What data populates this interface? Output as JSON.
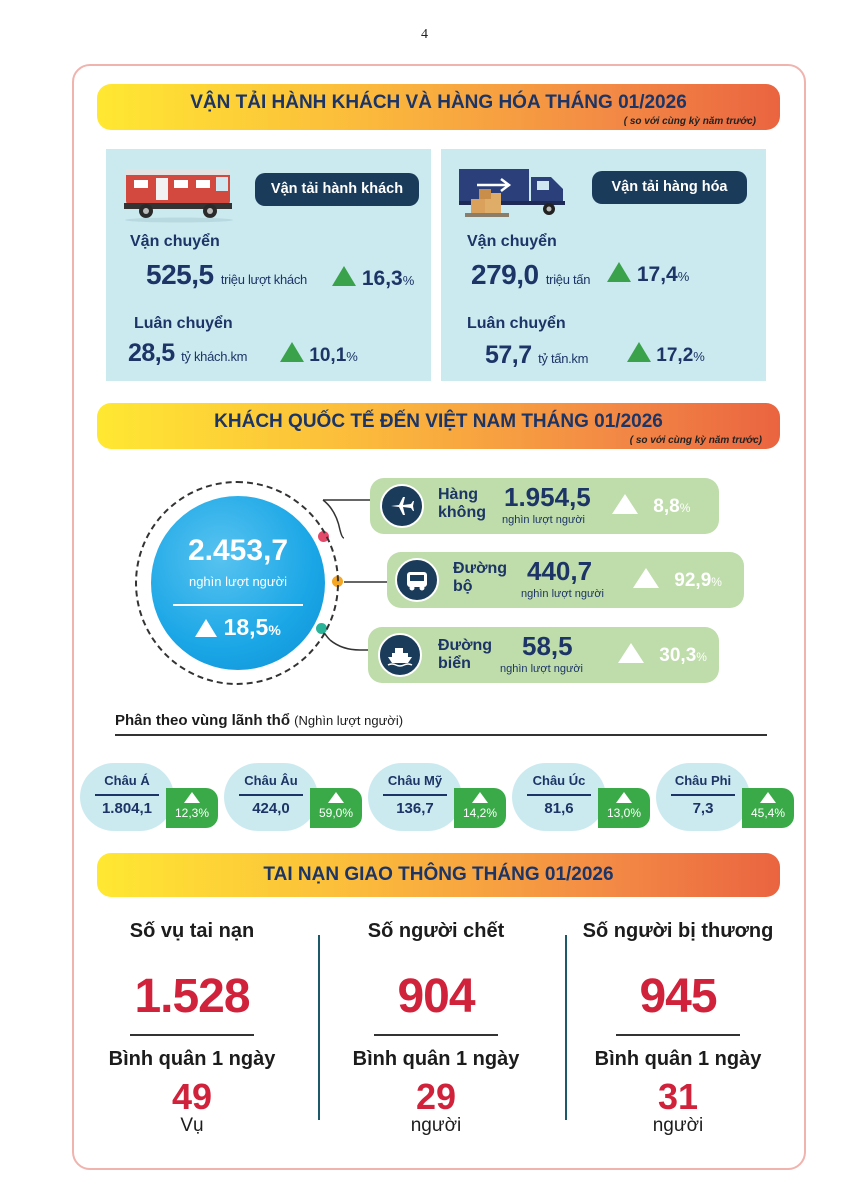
{
  "page_number": "4",
  "transport": {
    "title": "VẬN TẢI HÀNH KHÁCH VÀ HÀNG HÓA THÁNG 01/2026",
    "subtitle": "( so với cùng kỳ năm trước)",
    "passenger": {
      "header": "Vận tải hành khách",
      "carried_label": "Vận chuyển",
      "carried_value": "525,5",
      "carried_unit": "triệu lượt khách",
      "carried_pct": "16,3",
      "rotation_label": "Luân chuyển",
      "rotation_value": "28,5",
      "rotation_unit": "tỷ khách.km",
      "rotation_pct": "10,1"
    },
    "cargo": {
      "header": "Vận tải hàng hóa",
      "carried_label": "Vận chuyển",
      "carried_value": "279,0",
      "carried_unit": "triệu tấn",
      "carried_pct": "17,4",
      "rotation_label": "Luân chuyển",
      "rotation_value": "57,7",
      "rotation_unit": "tỷ tấn.km",
      "rotation_pct": "17,2"
    },
    "percent_sign": "%"
  },
  "visitors": {
    "title": "KHÁCH QUỐC TẾ ĐẾN VIỆT NAM THÁNG 01/2026",
    "subtitle": "( so với cùng kỳ năm trước)",
    "total_value": "2.453,7",
    "total_unit": "nghìn lượt người",
    "total_pct": "18,5",
    "modes": [
      {
        "label_line1": "Hàng",
        "label_line2": "không",
        "value": "1.954,5",
        "unit": "nghìn lượt người",
        "pct": "8,8",
        "icon": "airplane-icon"
      },
      {
        "label_line1": "Đường",
        "label_line2": "bộ",
        "value": "440,7",
        "unit": "nghìn lượt người",
        "pct": "92,9",
        "icon": "bus-icon"
      },
      {
        "label_line1": "Đường",
        "label_line2": "biển",
        "value": "58,5",
        "unit": "nghìn lượt người",
        "pct": "30,3",
        "icon": "ship-icon"
      }
    ],
    "region_heading": "Phân theo vùng lãnh thổ",
    "region_heading_unit": "(Nghìn lượt người)",
    "regions": [
      {
        "name": "Châu Á",
        "value": "1.804,1",
        "pct": "12,3%"
      },
      {
        "name": "Châu Âu",
        "value": "424,0",
        "pct": "59,0%"
      },
      {
        "name": "Châu Mỹ",
        "value": "136,7",
        "pct": "14,2%"
      },
      {
        "name": "Châu Úc",
        "value": "81,6",
        "pct": "13,0%"
      },
      {
        "name": "Châu Phi",
        "value": "7,3",
        "pct": "45,4%"
      }
    ]
  },
  "accidents": {
    "title": "TAI NẠN GIAO THÔNG THÁNG 01/2026",
    "columns": [
      {
        "title": "Số vụ tai nạn",
        "value": "1.528",
        "avg_label": "Bình quân 1 ngày",
        "avg_value": "49",
        "avg_unit": "Vụ"
      },
      {
        "title": "Số người chết",
        "value": "904",
        "avg_label": "Bình quân 1 ngày",
        "avg_value": "29",
        "avg_unit": "người"
      },
      {
        "title": "Số người bị thương",
        "value": "945",
        "avg_label": "Bình quân 1 ngày",
        "avg_value": "31",
        "avg_unit": "người"
      }
    ]
  },
  "colors": {
    "navy": "#1c3566",
    "green": "#3aa24a",
    "red": "#d0223b",
    "panel_blue": "#cbeaf0",
    "mode_green": "#bfdcab"
  }
}
